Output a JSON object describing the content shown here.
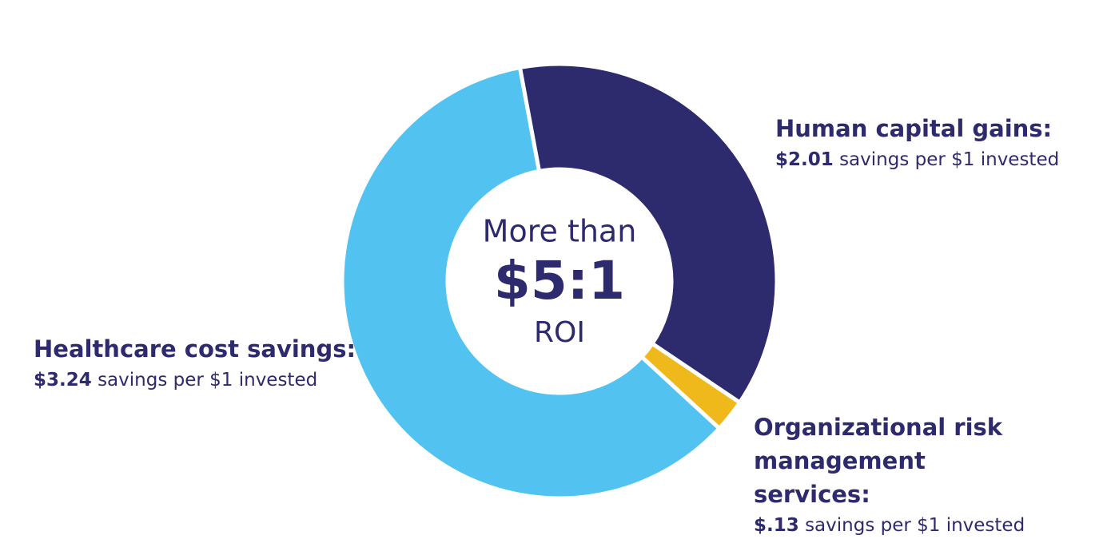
{
  "chart_data": {
    "type": "pie",
    "donut": true,
    "categories": [
      "Human capital gains:",
      "Organizational risk management services:",
      "Healthcare cost savings:"
    ],
    "values": [
      2.01,
      0.13,
      3.24
    ],
    "value_labels": [
      "$2.01",
      "$.13",
      "$3.24"
    ],
    "label_suffix": "savings per $1 invested",
    "colors": [
      "#2d2a6e",
      "#f0b91b",
      "#52c3f1"
    ],
    "center_text": [
      "More than",
      "$5:1",
      "ROI"
    ]
  }
}
